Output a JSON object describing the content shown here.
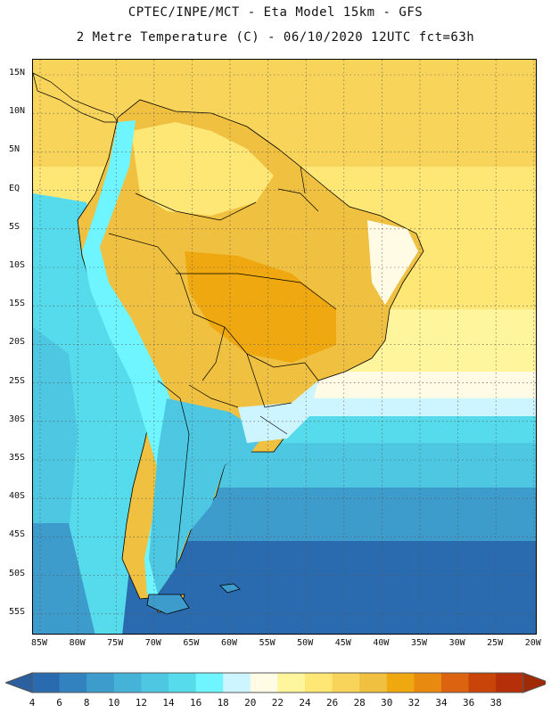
{
  "header": {
    "line1": "CPTEC/INPE/MCT -  Eta Model 15km - GFS",
    "line2": "2 Metre Temperature (C) - 06/10/2020 12UTC fct=63h"
  },
  "map": {
    "lat_labels": [
      "15N",
      "10N",
      "5N",
      "EQ",
      "5S",
      "10S",
      "15S",
      "20S",
      "25S",
      "30S",
      "35S",
      "40S",
      "45S",
      "50S",
      "55S"
    ],
    "lon_labels": [
      "85W",
      "80W",
      "75W",
      "70W",
      "65W",
      "60W",
      "55W",
      "50W",
      "45W",
      "40W",
      "35W",
      "30W",
      "25W",
      "20W"
    ]
  },
  "colorbar": {
    "labels": [
      "4",
      "6",
      "8",
      "10",
      "12",
      "14",
      "16",
      "18",
      "20",
      "22",
      "24",
      "26",
      "28",
      "30",
      "32",
      "34",
      "36",
      "38"
    ],
    "colors": [
      "#2a6bb0",
      "#3382c0",
      "#3d9ccc",
      "#45b2d8",
      "#4dc7e2",
      "#55dbeb",
      "#6ff5ff",
      "#cdf5ff",
      "#fffbe4",
      "#fff59c",
      "#ffe775",
      "#f8d45a",
      "#f0c040",
      "#f0a810",
      "#e88a10",
      "#dc6410",
      "#c84408",
      "#b53008"
    ],
    "low_color": "#2a5fa0",
    "high_color": "#a02a06"
  }
}
